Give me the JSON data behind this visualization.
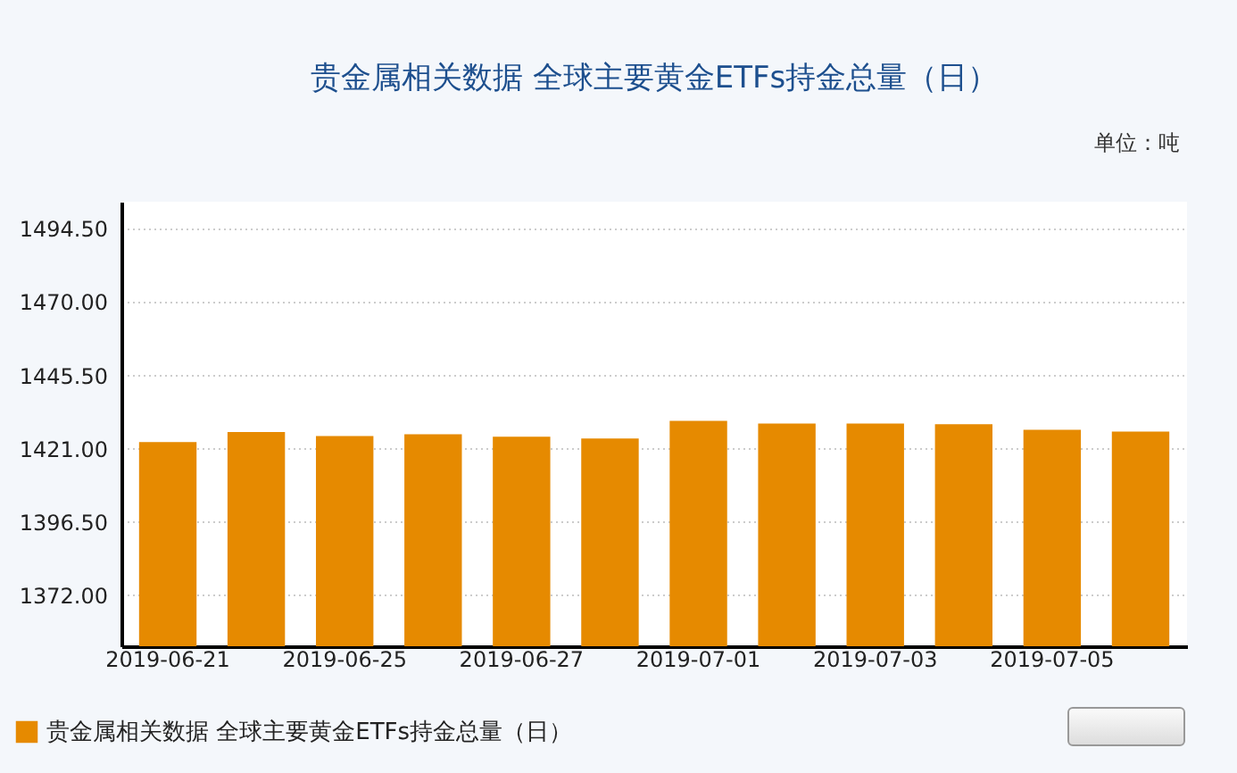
{
  "chart_data": {
    "type": "bar",
    "title": "贵金属相关数据 全球主要黄金ETFs持金总量（日）",
    "annotations": [
      "单位：吨"
    ],
    "categories": [
      "2019-06-21",
      null,
      "2019-06-25",
      null,
      "2019-06-27",
      null,
      "2019-07-01",
      null,
      "2019-07-03",
      null,
      "2019-07-05",
      null
    ],
    "series": [
      {
        "name": "贵金属相关数据 全球主要黄金ETFs持金总量（日）",
        "color": "#e68a00",
        "values": [
          1423.2,
          1426.6,
          1425.2,
          1425.8,
          1425.0,
          1424.4,
          1430.3,
          1429.4,
          1429.4,
          1429.2,
          1427.3,
          1426.7
        ]
      }
    ],
    "ylim": [
      1355,
      1503.5
    ],
    "yticks": [
      {
        "value": 1372,
        "label": "1372.00"
      },
      {
        "value": 1396.5,
        "label": "1396.50"
      },
      {
        "value": 1421,
        "label": "1421.00"
      },
      {
        "value": 1445.5,
        "label": "1445.50"
      },
      {
        "value": 1470,
        "label": "1470.00"
      },
      {
        "value": 1494.5,
        "label": "1494.50"
      }
    ],
    "grid": "y",
    "legend": "bottom left"
  }
}
